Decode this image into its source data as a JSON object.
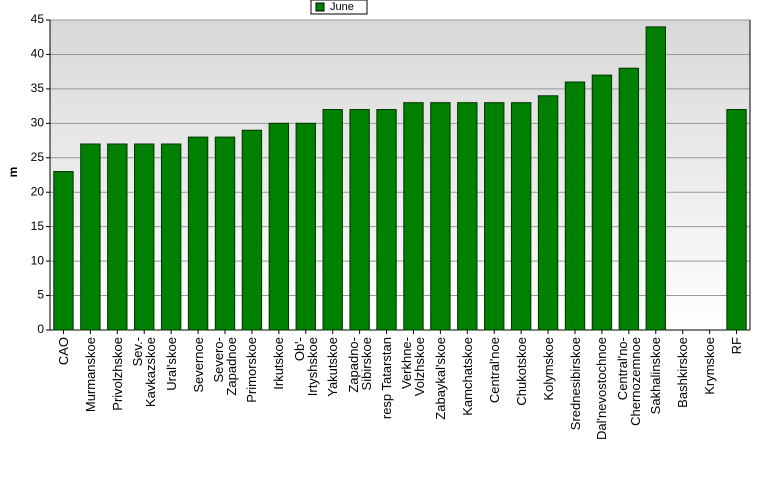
{
  "chart_data": {
    "type": "bar",
    "legend": {
      "label": "June",
      "position": "top"
    },
    "y_label": "m",
    "categories": [
      "CAO",
      "Murmanskoe",
      "Privolzhskoe",
      "Sev.-\nKavkazskoe",
      "Ural'skoe",
      "Severnoe",
      "Severo-\nZapadnoe",
      "Primorskoe",
      "Irkutskoe",
      "Ob'-\nIrtyshskoe",
      "Yakutskoe",
      "Zapadno-\nSibirskoe",
      "resp Tatarstan",
      "Verkhne-\nVolzhskoe",
      "Zabaykal'skoe",
      "Kamchatskoe",
      "Central'noe",
      "Chukotskoe",
      "Kolymskoe",
      "Srednesibirskoe",
      "Dal'nevostochnoe",
      "Central'no-\nChernozemnoe",
      "Sakhalinskoe",
      "Bashkirskoe",
      "Krymskoe",
      "RF"
    ],
    "values": [
      23,
      27,
      27,
      27,
      27,
      28,
      28,
      29,
      30,
      30,
      32,
      32,
      32,
      33,
      33,
      33,
      33,
      33,
      34,
      36,
      37,
      38,
      44,
      null,
      null,
      32
    ],
    "color": "#008000",
    "ylim": [
      0,
      45
    ],
    "yticks": [
      0,
      5,
      10,
      15,
      20,
      25,
      30,
      35,
      40,
      45
    ],
    "grid": true
  }
}
